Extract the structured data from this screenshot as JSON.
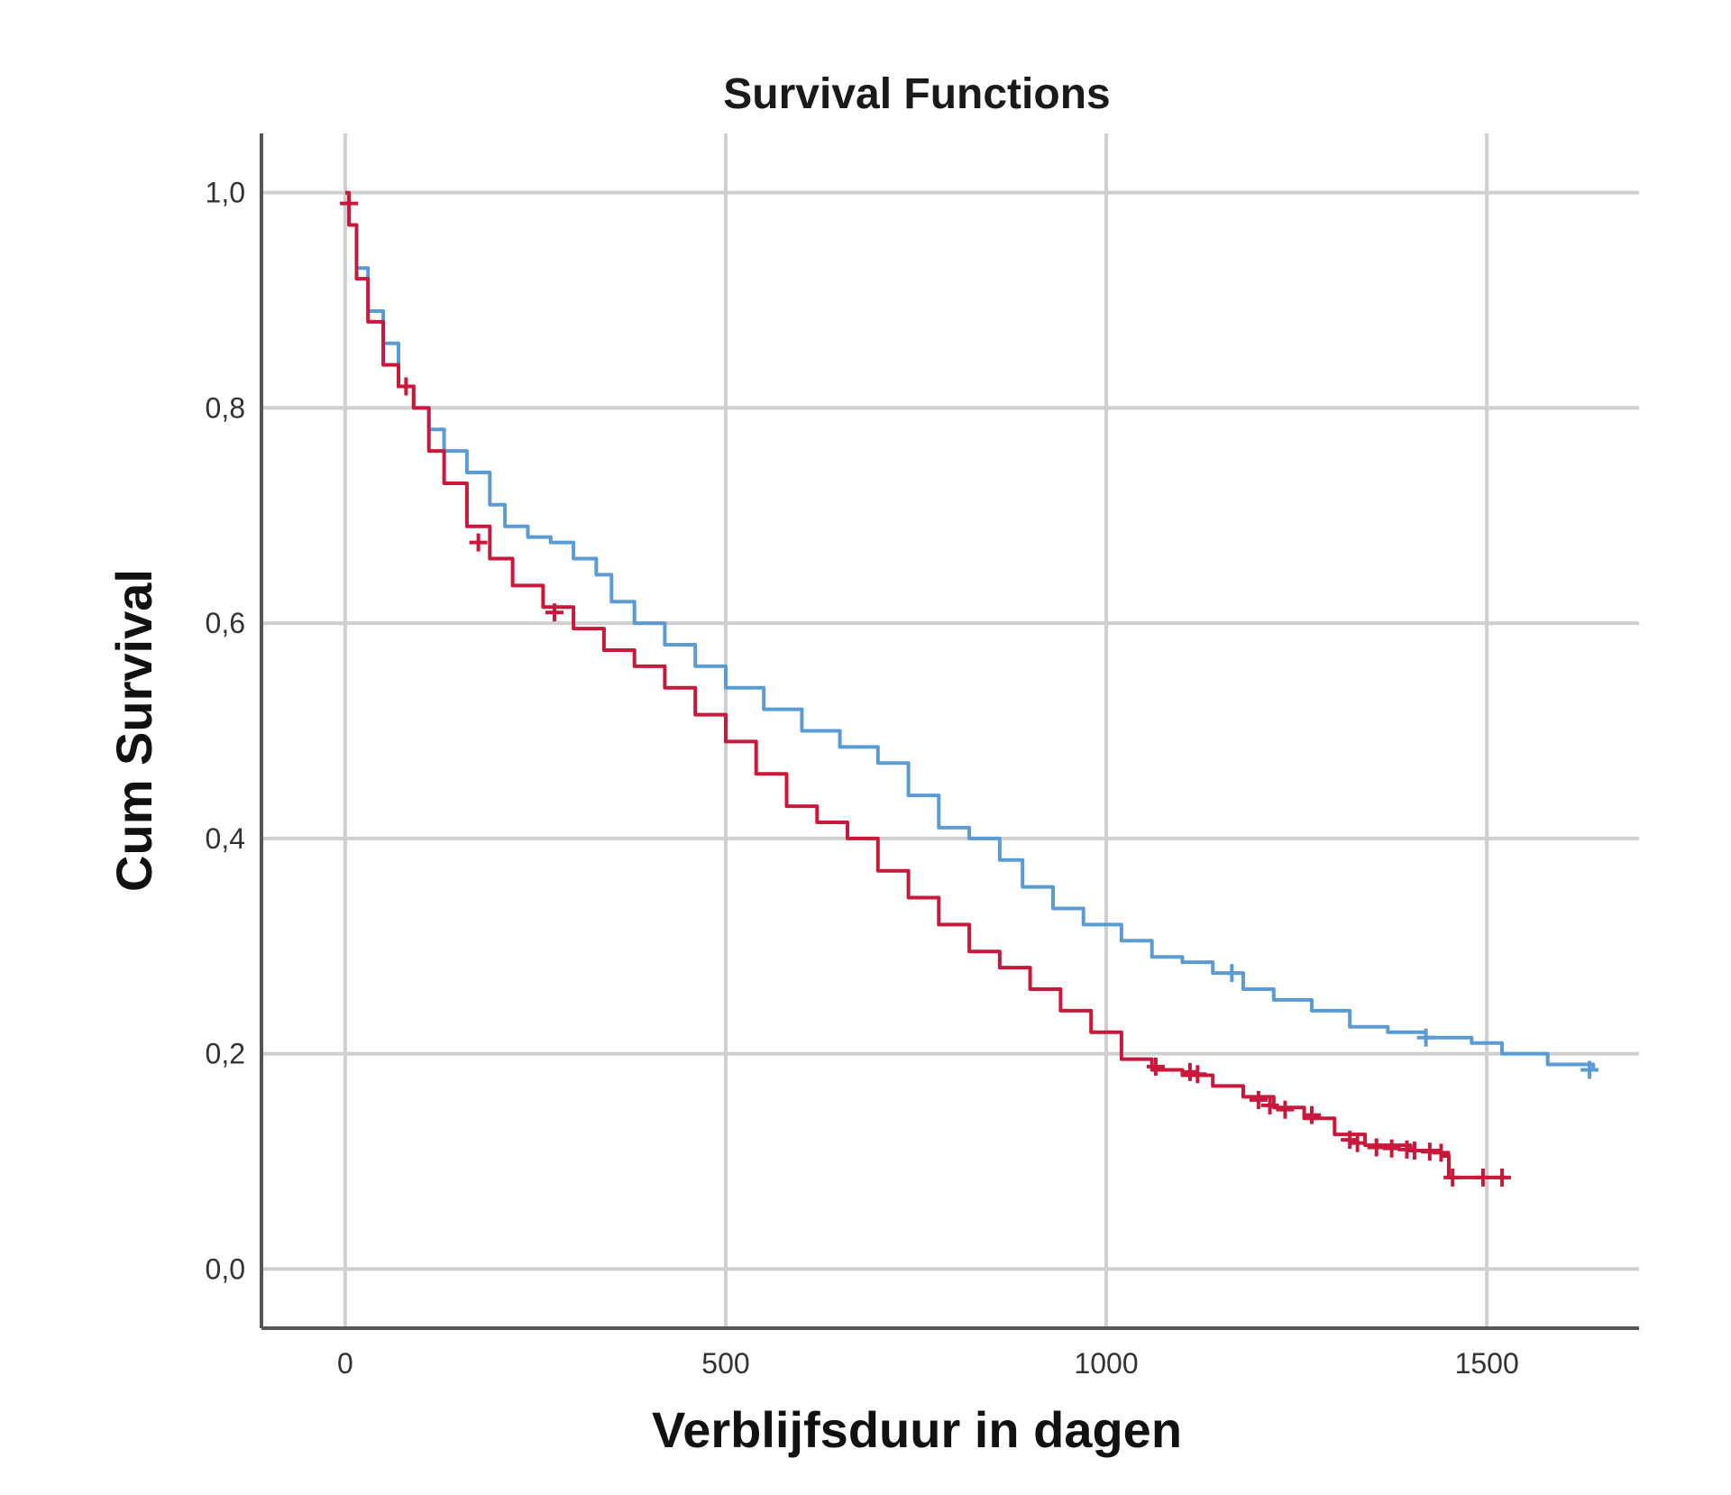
{
  "chart_data": {
    "type": "line",
    "step": true,
    "title": "Survival Functions",
    "xlabel": "Verblijfsduur in dagen",
    "ylabel": "Cum Survival",
    "xlim": [
      -110,
      1700
    ],
    "ylim": [
      -0.055,
      1.055
    ],
    "xticks": [
      0,
      500,
      1000,
      1500
    ],
    "xtick_labels": [
      "0",
      "500",
      "1000",
      "1500"
    ],
    "yticks": [
      0.0,
      0.2,
      0.4,
      0.6,
      0.8,
      1.0
    ],
    "ytick_labels": [
      "0,0",
      "0,2",
      "0,4",
      "0,6",
      "0,8",
      "1,0"
    ],
    "grid": true,
    "series": [
      {
        "color": "#5b9bd5",
        "points": [
          [
            0,
            1.0
          ],
          [
            5,
            0.97
          ],
          [
            15,
            0.93
          ],
          [
            30,
            0.89
          ],
          [
            50,
            0.86
          ],
          [
            70,
            0.82
          ],
          [
            90,
            0.8
          ],
          [
            110,
            0.78
          ],
          [
            130,
            0.76
          ],
          [
            160,
            0.74
          ],
          [
            190,
            0.71
          ],
          [
            210,
            0.69
          ],
          [
            240,
            0.68
          ],
          [
            270,
            0.675
          ],
          [
            300,
            0.66
          ],
          [
            330,
            0.645
          ],
          [
            350,
            0.62
          ],
          [
            380,
            0.6
          ],
          [
            420,
            0.58
          ],
          [
            460,
            0.56
          ],
          [
            500,
            0.54
          ],
          [
            550,
            0.52
          ],
          [
            600,
            0.5
          ],
          [
            650,
            0.485
          ],
          [
            700,
            0.47
          ],
          [
            740,
            0.44
          ],
          [
            780,
            0.41
          ],
          [
            820,
            0.4
          ],
          [
            860,
            0.38
          ],
          [
            890,
            0.355
          ],
          [
            930,
            0.335
          ],
          [
            970,
            0.32
          ],
          [
            1020,
            0.305
          ],
          [
            1060,
            0.29
          ],
          [
            1100,
            0.285
          ],
          [
            1140,
            0.275
          ],
          [
            1180,
            0.26
          ],
          [
            1220,
            0.25
          ],
          [
            1270,
            0.24
          ],
          [
            1320,
            0.225
          ],
          [
            1370,
            0.22
          ],
          [
            1420,
            0.215
          ],
          [
            1480,
            0.21
          ],
          [
            1520,
            0.2
          ],
          [
            1580,
            0.19
          ],
          [
            1640,
            0.185
          ]
        ],
        "censored": [
          [
            1165,
            0.275
          ],
          [
            1420,
            0.215
          ],
          [
            1635,
            0.185
          ]
        ]
      },
      {
        "color": "#c8193c",
        "points": [
          [
            0,
            1.0
          ],
          [
            5,
            0.97
          ],
          [
            15,
            0.92
          ],
          [
            30,
            0.88
          ],
          [
            50,
            0.84
          ],
          [
            70,
            0.82
          ],
          [
            90,
            0.8
          ],
          [
            110,
            0.76
          ],
          [
            130,
            0.73
          ],
          [
            160,
            0.69
          ],
          [
            190,
            0.66
          ],
          [
            220,
            0.635
          ],
          [
            260,
            0.615
          ],
          [
            300,
            0.595
          ],
          [
            340,
            0.575
          ],
          [
            380,
            0.56
          ],
          [
            420,
            0.54
          ],
          [
            460,
            0.515
          ],
          [
            500,
            0.49
          ],
          [
            540,
            0.46
          ],
          [
            580,
            0.43
          ],
          [
            620,
            0.415
          ],
          [
            660,
            0.4
          ],
          [
            700,
            0.37
          ],
          [
            740,
            0.345
          ],
          [
            780,
            0.32
          ],
          [
            820,
            0.295
          ],
          [
            860,
            0.28
          ],
          [
            900,
            0.26
          ],
          [
            940,
            0.24
          ],
          [
            980,
            0.22
          ],
          [
            1020,
            0.195
          ],
          [
            1060,
            0.185
          ],
          [
            1100,
            0.18
          ],
          [
            1140,
            0.17
          ],
          [
            1180,
            0.16
          ],
          [
            1220,
            0.15
          ],
          [
            1260,
            0.14
          ],
          [
            1300,
            0.125
          ],
          [
            1340,
            0.115
          ],
          [
            1400,
            0.11
          ],
          [
            1440,
            0.105
          ],
          [
            1450,
            0.085
          ],
          [
            1525,
            0.085
          ]
        ],
        "censored": [
          [
            5,
            0.99
          ],
          [
            80,
            0.82
          ],
          [
            175,
            0.675
          ],
          [
            275,
            0.61
          ],
          [
            1065,
            0.188
          ],
          [
            1110,
            0.183
          ],
          [
            1120,
            0.181
          ],
          [
            1200,
            0.157
          ],
          [
            1215,
            0.152
          ],
          [
            1235,
            0.148
          ],
          [
            1270,
            0.143
          ],
          [
            1320,
            0.12
          ],
          [
            1330,
            0.117
          ],
          [
            1355,
            0.113
          ],
          [
            1375,
            0.112
          ],
          [
            1395,
            0.111
          ],
          [
            1405,
            0.11
          ],
          [
            1425,
            0.109
          ],
          [
            1440,
            0.108
          ],
          [
            1455,
            0.085
          ],
          [
            1495,
            0.085
          ],
          [
            1520,
            0.085
          ]
        ]
      }
    ]
  }
}
